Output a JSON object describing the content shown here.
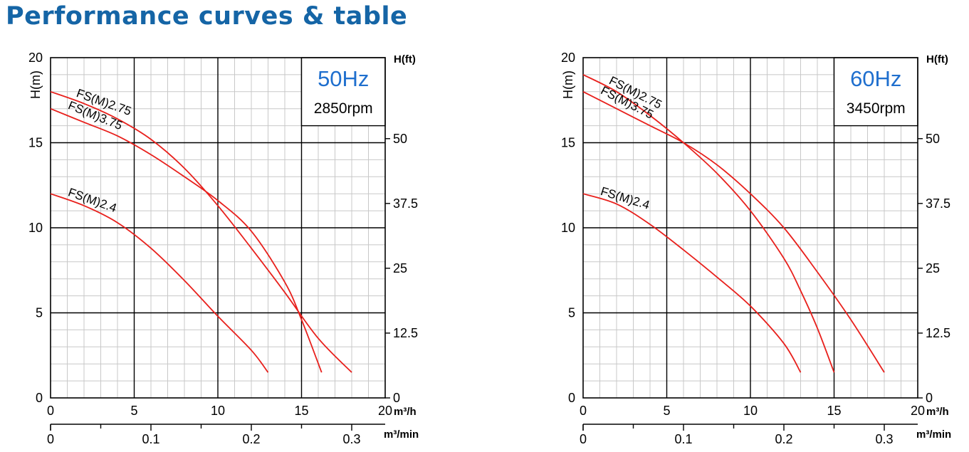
{
  "title": "Performance curves & table",
  "colors": {
    "title": "#1565a6",
    "curve": "#e8201c",
    "frequency": "#1f6fce"
  },
  "chart_data": [
    {
      "type": "line",
      "frequency": "50Hz",
      "speed": "2850rpm",
      "xlabel": "m³/h",
      "x2label": "m³/min",
      "ylabel": "H(m)",
      "y2label": "H(ft)",
      "xlim": [
        0,
        20
      ],
      "ylim": [
        0,
        20
      ],
      "x_ticks": [
        "0",
        "5",
        "10",
        "15",
        "20"
      ],
      "y_ticks": [
        "0",
        "5",
        "10",
        "15",
        "20"
      ],
      "x2_ticks": [
        "0",
        "0.1",
        "0.2",
        "0.3"
      ],
      "y2_ticks": [
        "0",
        "12.5",
        "25",
        "37.5",
        "50"
      ],
      "grid": true,
      "series": [
        {
          "name": "FS(M)2.75",
          "x": [
            0,
            2,
            4,
            6,
            8,
            10,
            12,
            14,
            16,
            18
          ],
          "y": [
            18,
            17.3,
            16.4,
            15.2,
            13.5,
            11.3,
            8.8,
            6.2,
            3.5,
            1.5
          ]
        },
        {
          "name": "FS(M)3.75",
          "x": [
            0,
            2,
            4,
            6,
            8,
            10,
            12,
            14,
            15,
            16.2
          ],
          "y": [
            17,
            16.2,
            15.4,
            14.3,
            13,
            11.6,
            9.8,
            6.8,
            4.6,
            1.5
          ]
        },
        {
          "name": "FS(M)2.4",
          "x": [
            0,
            2,
            4,
            6,
            8,
            10,
            12,
            13
          ],
          "y": [
            12,
            11.3,
            10.3,
            8.8,
            6.9,
            4.8,
            2.8,
            1.5
          ]
        }
      ]
    },
    {
      "type": "line",
      "frequency": "60Hz",
      "speed": "3450rpm",
      "xlabel": "m³/h",
      "x2label": "m³/min",
      "ylabel": "H(m)",
      "y2label": "H(ft)",
      "xlim": [
        0,
        20
      ],
      "ylim": [
        0,
        20
      ],
      "x_ticks": [
        "0",
        "5",
        "10",
        "15",
        "20"
      ],
      "y_ticks": [
        "0",
        "5",
        "10",
        "15",
        "20"
      ],
      "x2_ticks": [
        "0",
        "0.1",
        "0.2",
        "0.3"
      ],
      "y2_ticks": [
        "0",
        "12.5",
        "25",
        "37.5",
        "50"
      ],
      "grid": true,
      "series": [
        {
          "name": "FS(M)2.75",
          "x": [
            0,
            2,
            4,
            6,
            8,
            10,
            12,
            13,
            14,
            15
          ],
          "y": [
            19,
            18,
            16.6,
            15,
            13.2,
            11,
            8.2,
            6.3,
            4.1,
            1.5
          ]
        },
        {
          "name": "FS(M)3.75",
          "x": [
            0,
            2,
            4,
            6,
            8,
            10,
            12,
            14,
            16,
            18
          ],
          "y": [
            18,
            17,
            16,
            15,
            13.7,
            12,
            10,
            7.4,
            4.6,
            1.5
          ]
        },
        {
          "name": "FS(M)2.4",
          "x": [
            0,
            2,
            4,
            6,
            8,
            10,
            12,
            13
          ],
          "y": [
            12,
            11.4,
            10.2,
            8.7,
            7.1,
            5.4,
            3.2,
            1.5
          ]
        }
      ]
    }
  ]
}
